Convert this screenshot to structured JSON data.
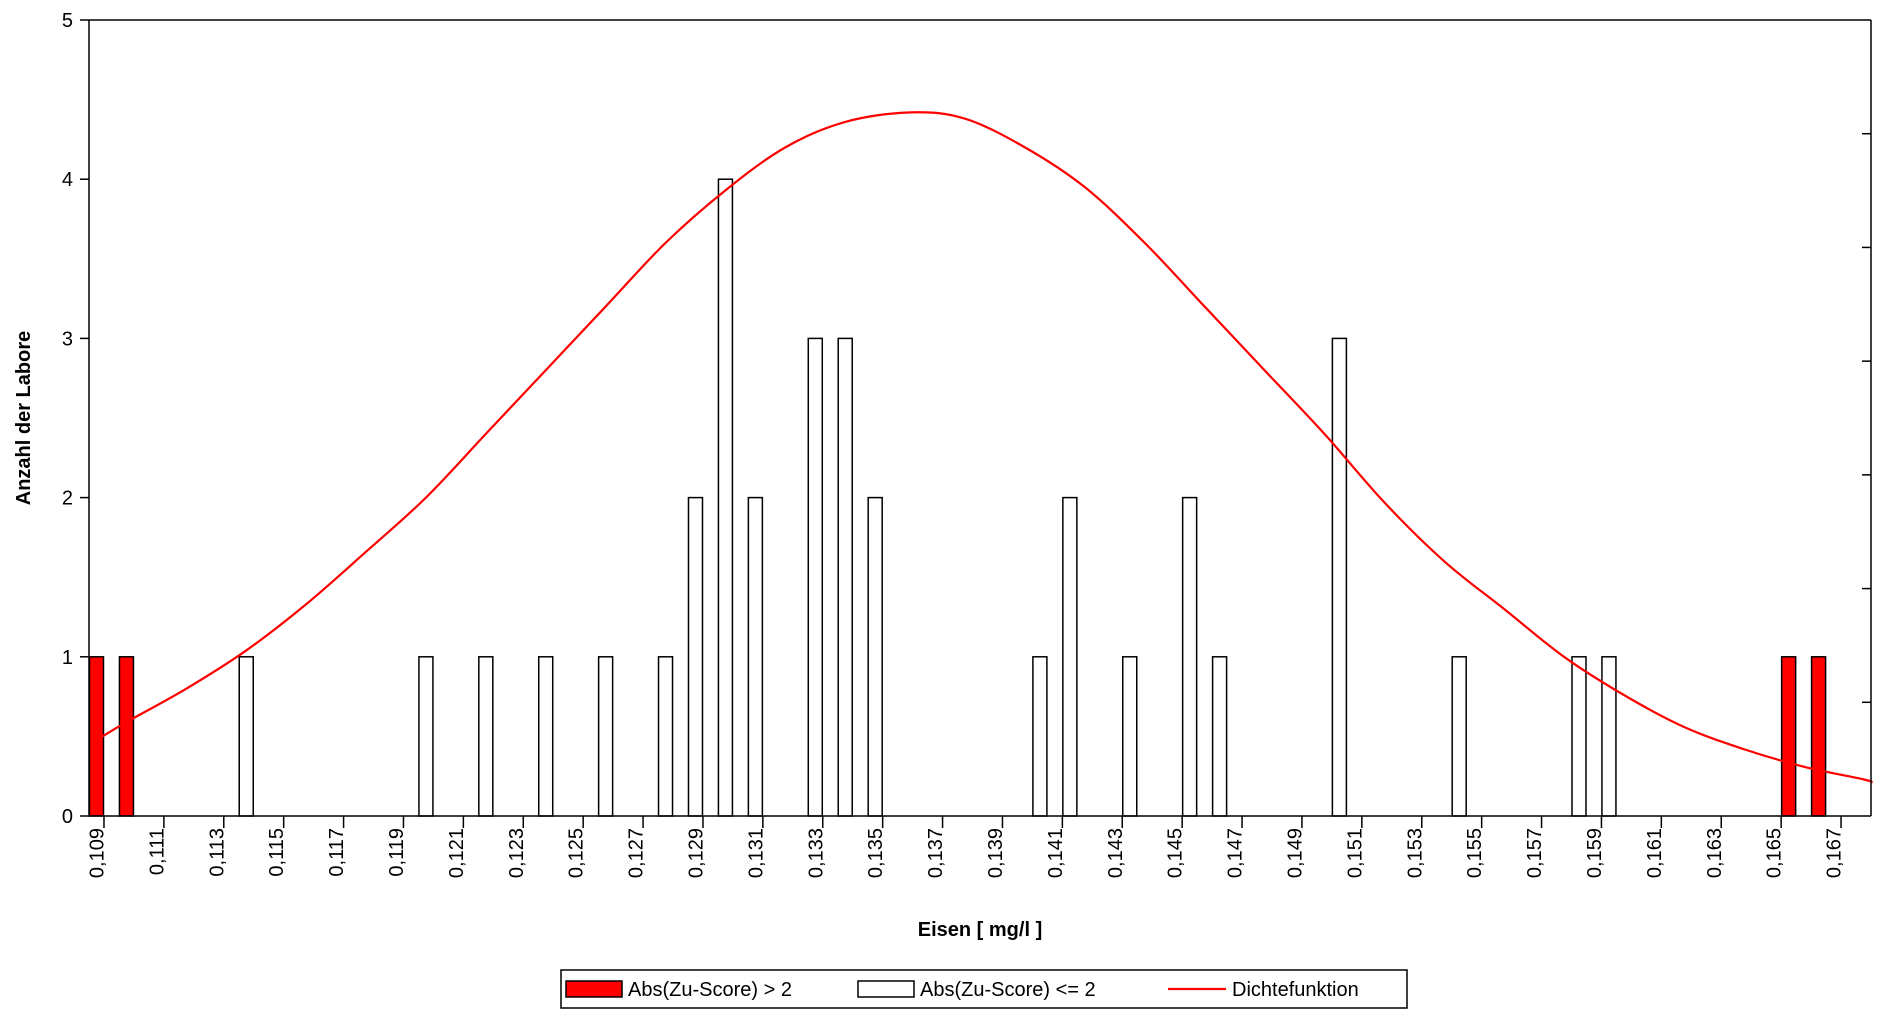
{
  "chart_data": {
    "type": "bar",
    "xlabel": "Eisen [ mg/l ]",
    "ylabel": "Anzahl der Labore",
    "ylim": [
      0,
      5
    ],
    "yticks": [
      "0",
      "1",
      "2",
      "3",
      "4",
      "5"
    ],
    "x_bin_start": 0.109,
    "x_bin_width": 0.0005,
    "x_labels": [
      "0,109",
      "0,111",
      "0,113",
      "0,115",
      "0,117",
      "0,119",
      "0,121",
      "0,123",
      "0,125",
      "0,127",
      "0,129",
      "0,131",
      "0,133",
      "0,135",
      "0,137",
      "0,139",
      "0,141",
      "0,143",
      "0,145",
      "0,147",
      "0,149",
      "0,151",
      "0,153",
      "0,155",
      "0,157",
      "0,159",
      "0,161",
      "0,163",
      "0,165",
      "0,167"
    ],
    "x_label_values": [
      0.109,
      0.111,
      0.113,
      0.115,
      0.117,
      0.119,
      0.121,
      0.123,
      0.125,
      0.127,
      0.129,
      0.131,
      0.133,
      0.135,
      0.137,
      0.139,
      0.141,
      0.143,
      0.145,
      0.147,
      0.149,
      0.151,
      0.153,
      0.155,
      0.157,
      0.159,
      0.161,
      0.163,
      0.165,
      0.167
    ],
    "grid": false,
    "legend_position": "bottom",
    "series": [
      {
        "name": "Abs(Zu-Score) > 2",
        "color": "#ff0000",
        "points": [
          {
            "x": 0.109,
            "y": 1
          },
          {
            "x": 0.11,
            "y": 1
          },
          {
            "x": 0.1655,
            "y": 1
          },
          {
            "x": 0.1665,
            "y": 1
          }
        ]
      },
      {
        "name": "Abs(Zu-Score) <= 2",
        "color": "#ffffff",
        "points": [
          {
            "x": 0.114,
            "y": 1
          },
          {
            "x": 0.12,
            "y": 1
          },
          {
            "x": 0.122,
            "y": 1
          },
          {
            "x": 0.124,
            "y": 1
          },
          {
            "x": 0.126,
            "y": 1
          },
          {
            "x": 0.128,
            "y": 1
          },
          {
            "x": 0.129,
            "y": 2
          },
          {
            "x": 0.13,
            "y": 4
          },
          {
            "x": 0.131,
            "y": 2
          },
          {
            "x": 0.133,
            "y": 3
          },
          {
            "x": 0.134,
            "y": 3
          },
          {
            "x": 0.135,
            "y": 2
          },
          {
            "x": 0.1405,
            "y": 1
          },
          {
            "x": 0.1415,
            "y": 2
          },
          {
            "x": 0.1435,
            "y": 1
          },
          {
            "x": 0.1455,
            "y": 2
          },
          {
            "x": 0.1465,
            "y": 1
          },
          {
            "x": 0.1505,
            "y": 3
          },
          {
            "x": 0.1545,
            "y": 1
          },
          {
            "x": 0.1585,
            "y": 1
          },
          {
            "x": 0.1595,
            "y": 1
          }
        ]
      },
      {
        "name": "Dichtefunktion",
        "type": "line",
        "color": "#ff0000",
        "points": [
          {
            "x": 0.1092,
            "y": 0.5
          },
          {
            "x": 0.11,
            "y": 0.59
          },
          {
            "x": 0.112,
            "y": 0.8
          },
          {
            "x": 0.114,
            "y": 1.04
          },
          {
            "x": 0.116,
            "y": 1.33
          },
          {
            "x": 0.118,
            "y": 1.66
          },
          {
            "x": 0.12,
            "y": 2.0
          },
          {
            "x": 0.122,
            "y": 2.4
          },
          {
            "x": 0.124,
            "y": 2.8
          },
          {
            "x": 0.126,
            "y": 3.2
          },
          {
            "x": 0.128,
            "y": 3.6
          },
          {
            "x": 0.13,
            "y": 3.93
          },
          {
            "x": 0.132,
            "y": 4.2
          },
          {
            "x": 0.134,
            "y": 4.36
          },
          {
            "x": 0.1362,
            "y": 4.42
          },
          {
            "x": 0.138,
            "y": 4.38
          },
          {
            "x": 0.14,
            "y": 4.2
          },
          {
            "x": 0.142,
            "y": 3.95
          },
          {
            "x": 0.144,
            "y": 3.6
          },
          {
            "x": 0.146,
            "y": 3.2
          },
          {
            "x": 0.148,
            "y": 2.8
          },
          {
            "x": 0.15,
            "y": 2.4
          },
          {
            "x": 0.152,
            "y": 1.97
          },
          {
            "x": 0.154,
            "y": 1.6
          },
          {
            "x": 0.156,
            "y": 1.3
          },
          {
            "x": 0.158,
            "y": 1.0
          },
          {
            "x": 0.16,
            "y": 0.76
          },
          {
            "x": 0.162,
            "y": 0.56
          },
          {
            "x": 0.164,
            "y": 0.42
          },
          {
            "x": 0.166,
            "y": 0.31
          },
          {
            "x": 0.168,
            "y": 0.23
          },
          {
            "x": 0.1683,
            "y": 0.21
          }
        ]
      }
    ]
  }
}
